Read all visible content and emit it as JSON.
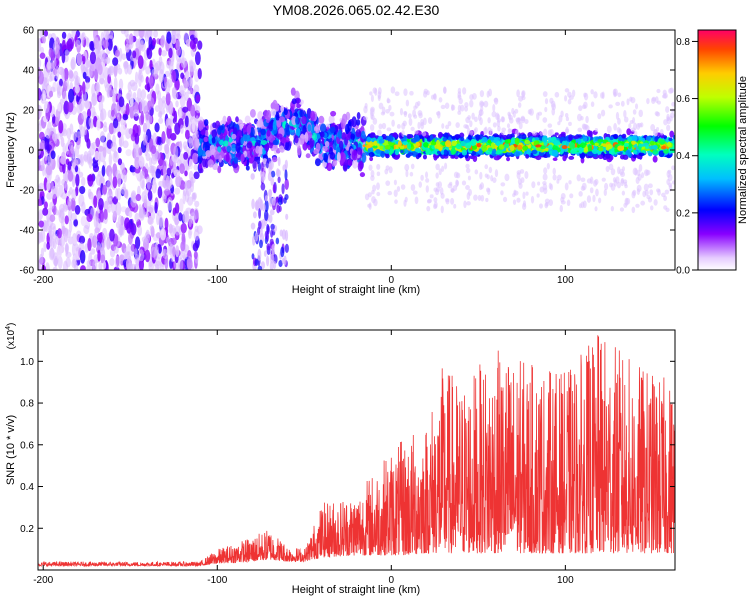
{
  "title": "YM08.2026.065.02.42.E30",
  "chart_data": [
    {
      "type": "heatmap",
      "xlabel": "Height of straight line (km)",
      "ylabel": "Frequency (Hz)",
      "xlim": [
        -203,
        163
      ],
      "ylim": [
        -60,
        60
      ],
      "xticks": [
        -200,
        -100,
        0,
        100
      ],
      "xtick_labels": [
        "-200",
        "-100",
        "0",
        "100"
      ],
      "yticks": [
        -60,
        -40,
        -20,
        0,
        20,
        40,
        60
      ],
      "ytick_labels": [
        "-60",
        "-40",
        "-20",
        "0",
        "20",
        "40",
        "60"
      ],
      "colorbar": {
        "label": "Normalized spectral amplitude",
        "range": [
          0.0,
          0.84
        ],
        "ticks": [
          0.0,
          0.2,
          0.4,
          0.6,
          0.8
        ],
        "tick_labels": [
          "0.0",
          "0.2",
          "0.4",
          "0.6",
          "0.8"
        ]
      },
      "features": [
        {
          "name": "broadband noise",
          "x_range": [
            -203,
            -110
          ],
          "f_range": [
            -60,
            60
          ],
          "amplitude": 0.15
        },
        {
          "name": "emerging signal band",
          "x_range": [
            -110,
            -15
          ],
          "f_center": 3,
          "f_width": 14,
          "amplitude": 0.3
        },
        {
          "name": "stable signal band",
          "x_range": [
            -15,
            163
          ],
          "f_center": 2,
          "f_width": 8,
          "amplitude": 0.5
        }
      ]
    },
    {
      "type": "line",
      "xlabel": "Height of straight line (km)",
      "ylabel": "SNR (10 * v/v)",
      "y_scale_label": "(x10",
      "y_scale_exponent": "4",
      "xlim": [
        -203,
        163
      ],
      "ylim": [
        0,
        1.15
      ],
      "xticks": [
        -200,
        -100,
        0,
        100
      ],
      "xtick_labels": [
        "-200",
        "-100",
        "0",
        "100"
      ],
      "yticks": [
        0.2,
        0.4,
        0.6,
        0.8,
        1.0
      ],
      "ytick_labels": [
        "0.2",
        "0.4",
        "0.6",
        "0.8",
        "1.0"
      ],
      "series": [
        {
          "name": "SNR",
          "color": "#ee3333",
          "envelope_x": [
            -203,
            -110,
            -100,
            -80,
            -70,
            -60,
            -50,
            -40,
            -20,
            0,
            10,
            20,
            30,
            40,
            60,
            80,
            100,
            120,
            140,
            163
          ],
          "envelope_max": [
            0.04,
            0.04,
            0.1,
            0.16,
            0.2,
            0.12,
            0.1,
            0.32,
            0.38,
            0.58,
            0.65,
            0.72,
            1.0,
            0.9,
            1.06,
            1.0,
            0.95,
            1.15,
            1.0,
            0.9
          ],
          "envelope_min": [
            0.02,
            0.02,
            0.03,
            0.04,
            0.05,
            0.04,
            0.04,
            0.06,
            0.07,
            0.07,
            0.07,
            0.08,
            0.08,
            0.08,
            0.08,
            0.08,
            0.08,
            0.08,
            0.08,
            0.08
          ]
        }
      ]
    }
  ]
}
